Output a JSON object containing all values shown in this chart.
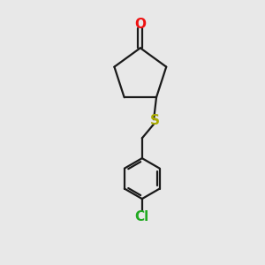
{
  "background_color": "#e8e8e8",
  "bond_color": "#1a1a1a",
  "oxygen_color": "#ee1111",
  "sulfur_color": "#aaaa00",
  "chlorine_color": "#22aa22",
  "atom_labels": {
    "O": {
      "text": "O",
      "color": "#ee1111",
      "fontsize": 11
    },
    "S": {
      "text": "S",
      "color": "#aaaa00",
      "fontsize": 11
    },
    "Cl": {
      "text": "Cl",
      "color": "#22aa22",
      "fontsize": 11
    }
  },
  "figsize": [
    3.0,
    3.0
  ],
  "dpi": 100
}
